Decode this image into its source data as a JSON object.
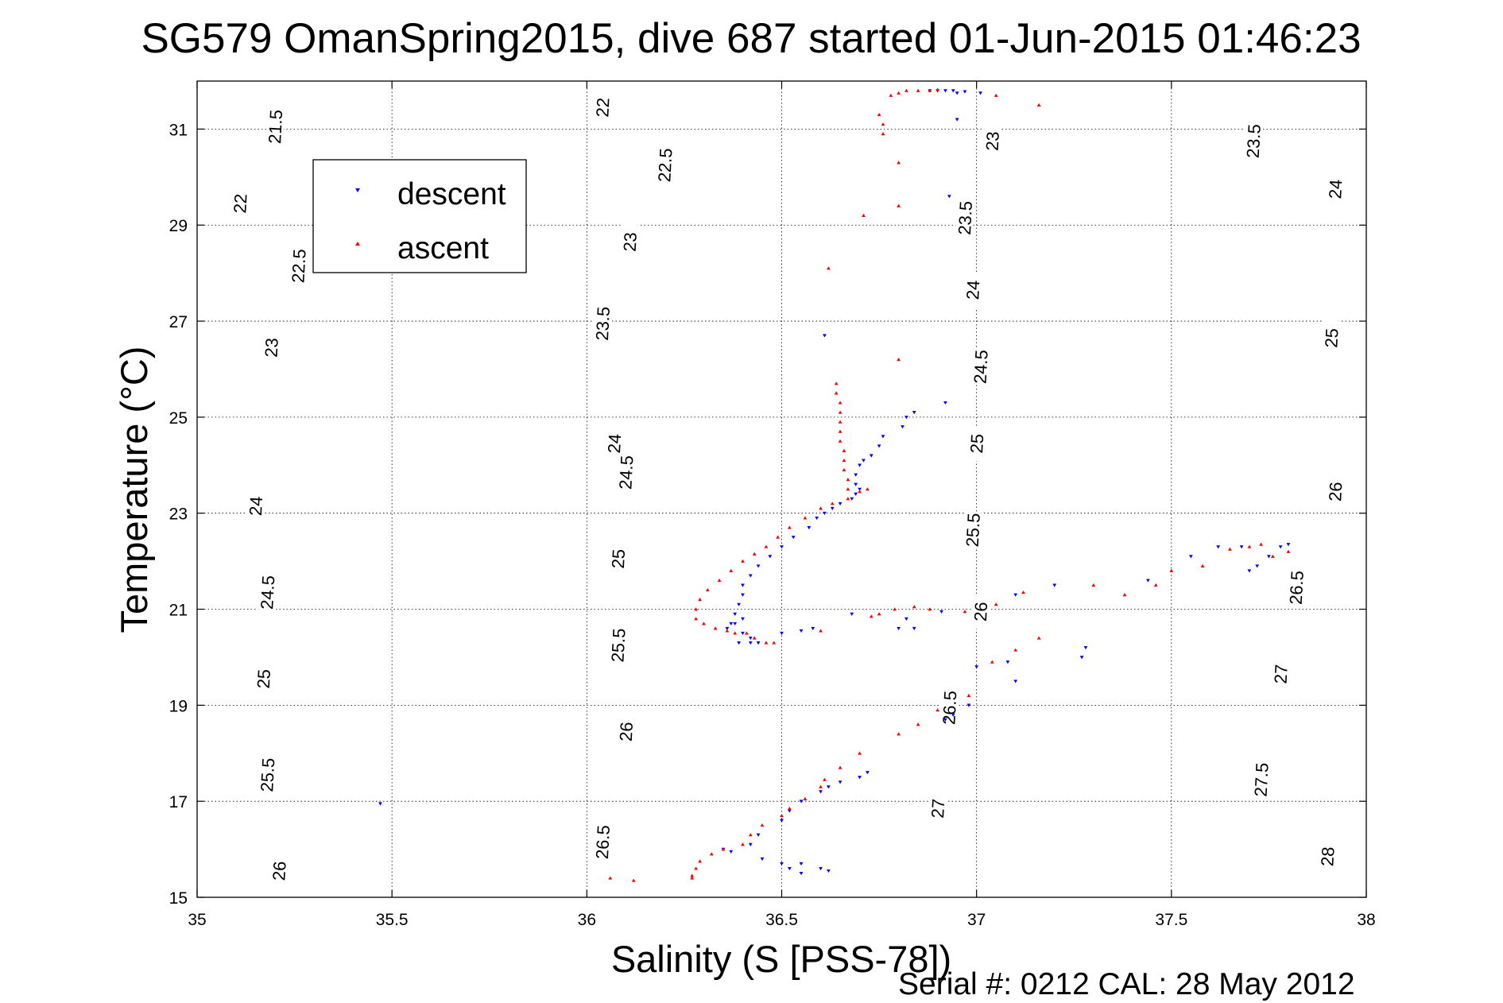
{
  "chart_data": {
    "type": "scatter",
    "title": "SG579 OmanSpring2015, dive 687 started 01-Jun-2015 01:46:23",
    "xlabel": "Salinity (S [PSS-78])",
    "ylabel": "Temperature (°C)",
    "xlim": [
      35,
      38
    ],
    "ylim": [
      15,
      32
    ],
    "x_ticks": [
      35,
      35.5,
      36,
      36.5,
      37,
      37.5,
      38
    ],
    "x_tick_labels": [
      "35",
      "35.5",
      "36",
      "36.5",
      "37",
      "37.5",
      "38"
    ],
    "y_ticks": [
      15,
      17,
      19,
      21,
      23,
      25,
      27,
      29,
      31
    ],
    "y_tick_labels": [
      "15",
      "17",
      "19",
      "21",
      "23",
      "25",
      "27",
      "29",
      "31"
    ],
    "grid": true,
    "legend_position": "top-left",
    "footer": "Serial #: 0212  CAL: 28 May 2012",
    "contours": {
      "levels": [
        21.5,
        22,
        22.5,
        23,
        23.5,
        24,
        24.5,
        25,
        25.5,
        26,
        26.5,
        27,
        27.5,
        28
      ],
      "labels": [
        {
          "text": "21.5",
          "s": 35.2,
          "t": 31.0
        },
        {
          "text": "22",
          "s": 36.04,
          "t": 31.4
        },
        {
          "text": "22",
          "s": 35.11,
          "t": 29.4
        },
        {
          "text": "22.5",
          "s": 36.2,
          "t": 30.2
        },
        {
          "text": "23",
          "s": 37.04,
          "t": 30.7
        },
        {
          "text": "22.5",
          "s": 35.26,
          "t": 28.1
        },
        {
          "text": "23",
          "s": 36.11,
          "t": 28.6
        },
        {
          "text": "23.5",
          "s": 36.97,
          "t": 29.1
        },
        {
          "text": "23.5",
          "s": 37.71,
          "t": 30.7
        },
        {
          "text": "24",
          "s": 37.92,
          "t": 29.7
        },
        {
          "text": "23",
          "s": 35.19,
          "t": 26.4
        },
        {
          "text": "23.5",
          "s": 36.04,
          "t": 26.9
        },
        {
          "text": "24",
          "s": 36.99,
          "t": 27.6
        },
        {
          "text": "24",
          "s": 36.07,
          "t": 24.4
        },
        {
          "text": "24.5",
          "s": 37.01,
          "t": 26.0
        },
        {
          "text": "25",
          "s": 37.91,
          "t": 26.6
        },
        {
          "text": "24",
          "s": 35.15,
          "t": 23.1
        },
        {
          "text": "24.5",
          "s": 36.1,
          "t": 23.8
        },
        {
          "text": "25",
          "s": 37.0,
          "t": 24.4
        },
        {
          "text": "24.5",
          "s": 35.18,
          "t": 21.3
        },
        {
          "text": "25",
          "s": 36.08,
          "t": 22.0
        },
        {
          "text": "25.5",
          "s": 36.99,
          "t": 22.6
        },
        {
          "text": "26",
          "s": 37.92,
          "t": 23.4
        },
        {
          "text": "25",
          "s": 35.17,
          "t": 19.5
        },
        {
          "text": "25.5",
          "s": 36.08,
          "t": 20.2
        },
        {
          "text": "26",
          "s": 37.01,
          "t": 20.9
        },
        {
          "text": "26.5",
          "s": 37.82,
          "t": 21.4
        },
        {
          "text": "26",
          "s": 36.1,
          "t": 18.4
        },
        {
          "text": "26.5",
          "s": 36.93,
          "t": 18.9
        },
        {
          "text": "27",
          "s": 37.78,
          "t": 19.6
        },
        {
          "text": "25.5",
          "s": 35.18,
          "t": 17.5
        },
        {
          "text": "26",
          "s": 35.21,
          "t": 15.5
        },
        {
          "text": "26.5",
          "s": 36.04,
          "t": 16.1
        },
        {
          "text": "27",
          "s": 36.9,
          "t": 16.8
        },
        {
          "text": "27.5",
          "s": 37.73,
          "t": 17.4
        },
        {
          "text": "28",
          "s": 37.9,
          "t": 15.8
        }
      ]
    },
    "series": [
      {
        "name": "descent",
        "marker": "triangle-down",
        "color": "#0000ff",
        "points": [
          [
            36.92,
            31.8
          ],
          [
            36.94,
            31.8
          ],
          [
            36.95,
            31.75
          ],
          [
            36.97,
            31.78
          ],
          [
            36.9,
            31.8
          ],
          [
            36.88,
            31.8
          ],
          [
            37.01,
            31.75
          ],
          [
            36.95,
            31.2
          ],
          [
            36.93,
            29.6
          ],
          [
            36.61,
            26.7
          ],
          [
            36.92,
            25.3
          ],
          [
            36.84,
            25.1
          ],
          [
            36.82,
            25.0
          ],
          [
            36.81,
            24.8
          ],
          [
            36.76,
            24.6
          ],
          [
            36.75,
            24.4
          ],
          [
            36.73,
            24.2
          ],
          [
            36.71,
            24.1
          ],
          [
            36.7,
            24.0
          ],
          [
            36.69,
            23.8
          ],
          [
            36.69,
            23.6
          ],
          [
            36.7,
            23.5
          ],
          [
            36.69,
            23.4
          ],
          [
            36.68,
            23.3
          ],
          [
            36.65,
            23.2
          ],
          [
            36.63,
            23.1
          ],
          [
            36.61,
            23.0
          ],
          [
            36.59,
            22.9
          ],
          [
            36.57,
            22.7
          ],
          [
            36.53,
            22.5
          ],
          [
            36.5,
            22.3
          ],
          [
            36.47,
            22.1
          ],
          [
            36.44,
            21.9
          ],
          [
            36.42,
            21.7
          ],
          [
            36.4,
            21.5
          ],
          [
            36.4,
            21.3
          ],
          [
            36.39,
            21.1
          ],
          [
            36.38,
            20.9
          ],
          [
            36.37,
            20.7
          ],
          [
            36.36,
            20.6
          ],
          [
            36.4,
            20.5
          ],
          [
            36.42,
            20.4
          ],
          [
            36.44,
            20.3
          ],
          [
            36.42,
            20.3
          ],
          [
            36.39,
            20.3
          ],
          [
            36.38,
            20.7
          ],
          [
            36.4,
            20.8
          ],
          [
            36.5,
            20.5
          ],
          [
            36.55,
            20.55
          ],
          [
            36.58,
            20.6
          ],
          [
            36.68,
            20.9
          ],
          [
            36.82,
            20.8
          ],
          [
            36.8,
            20.6
          ],
          [
            36.84,
            20.6
          ],
          [
            36.91,
            20.95
          ],
          [
            37.1,
            21.3
          ],
          [
            37.2,
            21.5
          ],
          [
            37.44,
            21.6
          ],
          [
            37.55,
            22.1
          ],
          [
            37.62,
            22.3
          ],
          [
            37.68,
            22.3
          ],
          [
            37.72,
            21.9
          ],
          [
            37.7,
            21.8
          ],
          [
            37.75,
            22.1
          ],
          [
            37.78,
            22.3
          ],
          [
            37.8,
            22.35
          ],
          [
            37.08,
            19.9
          ],
          [
            37.0,
            19.8
          ],
          [
            37.1,
            19.5
          ],
          [
            37.28,
            20.2
          ],
          [
            37.27,
            20.0
          ],
          [
            36.98,
            19.0
          ],
          [
            36.94,
            18.8
          ],
          [
            36.92,
            18.7
          ],
          [
            36.72,
            17.6
          ],
          [
            36.7,
            17.5
          ],
          [
            36.65,
            17.4
          ],
          [
            36.62,
            17.3
          ],
          [
            36.6,
            17.2
          ],
          [
            36.55,
            17.0
          ],
          [
            36.52,
            16.8
          ],
          [
            36.5,
            16.6
          ],
          [
            36.44,
            16.3
          ],
          [
            36.42,
            16.1
          ],
          [
            36.35,
            16.0
          ],
          [
            36.37,
            15.95
          ],
          [
            36.45,
            15.8
          ],
          [
            36.5,
            15.7
          ],
          [
            36.52,
            15.6
          ],
          [
            36.55,
            15.7
          ],
          [
            36.6,
            15.6
          ],
          [
            36.62,
            15.55
          ],
          [
            36.55,
            15.5
          ],
          [
            35.47,
            16.95
          ]
        ]
      },
      {
        "name": "ascent",
        "marker": "triangle-up",
        "color": "#ff0000",
        "points": [
          [
            36.8,
            31.75
          ],
          [
            36.82,
            31.8
          ],
          [
            36.85,
            31.8
          ],
          [
            36.88,
            31.8
          ],
          [
            36.9,
            31.82
          ],
          [
            36.78,
            31.7
          ],
          [
            37.05,
            31.7
          ],
          [
            37.16,
            31.5
          ],
          [
            36.75,
            31.3
          ],
          [
            36.76,
            31.1
          ],
          [
            36.76,
            30.9
          ],
          [
            36.8,
            30.3
          ],
          [
            36.8,
            29.4
          ],
          [
            36.71,
            29.2
          ],
          [
            36.62,
            28.1
          ],
          [
            36.8,
            26.2
          ],
          [
            36.64,
            25.7
          ],
          [
            36.64,
            25.5
          ],
          [
            36.65,
            25.3
          ],
          [
            36.65,
            25.1
          ],
          [
            36.65,
            24.9
          ],
          [
            36.65,
            24.7
          ],
          [
            36.65,
            24.5
          ],
          [
            36.66,
            24.3
          ],
          [
            36.66,
            24.1
          ],
          [
            36.66,
            23.9
          ],
          [
            36.67,
            23.7
          ],
          [
            36.67,
            23.5
          ],
          [
            36.7,
            23.45
          ],
          [
            36.72,
            23.5
          ],
          [
            36.67,
            23.3
          ],
          [
            36.63,
            23.2
          ],
          [
            36.6,
            23.1
          ],
          [
            36.56,
            22.9
          ],
          [
            36.52,
            22.7
          ],
          [
            36.49,
            22.5
          ],
          [
            36.46,
            22.3
          ],
          [
            36.43,
            22.15
          ],
          [
            36.4,
            22.0
          ],
          [
            36.37,
            21.8
          ],
          [
            36.34,
            21.6
          ],
          [
            36.31,
            21.4
          ],
          [
            36.29,
            21.2
          ],
          [
            36.28,
            21.0
          ],
          [
            36.28,
            20.8
          ],
          [
            36.3,
            20.7
          ],
          [
            36.33,
            20.6
          ],
          [
            36.36,
            20.55
          ],
          [
            36.38,
            20.5
          ],
          [
            36.41,
            20.5
          ],
          [
            36.43,
            20.4
          ],
          [
            36.46,
            20.3
          ],
          [
            36.48,
            20.3
          ],
          [
            36.6,
            20.55
          ],
          [
            36.73,
            20.85
          ],
          [
            36.75,
            20.9
          ],
          [
            36.79,
            21.0
          ],
          [
            36.84,
            21.05
          ],
          [
            36.88,
            21.0
          ],
          [
            36.97,
            20.95
          ],
          [
            37.05,
            21.1
          ],
          [
            37.12,
            21.35
          ],
          [
            37.3,
            21.5
          ],
          [
            37.38,
            21.3
          ],
          [
            37.46,
            21.5
          ],
          [
            37.5,
            21.8
          ],
          [
            37.58,
            21.9
          ],
          [
            37.65,
            22.25
          ],
          [
            37.7,
            22.3
          ],
          [
            37.73,
            22.35
          ],
          [
            37.76,
            22.1
          ],
          [
            37.8,
            22.2
          ],
          [
            37.16,
            20.4
          ],
          [
            37.1,
            20.15
          ],
          [
            37.04,
            19.9
          ],
          [
            36.98,
            19.2
          ],
          [
            36.9,
            18.9
          ],
          [
            36.85,
            18.6
          ],
          [
            36.8,
            18.4
          ],
          [
            36.7,
            18.0
          ],
          [
            36.65,
            17.7
          ],
          [
            36.61,
            17.45
          ],
          [
            36.6,
            17.3
          ],
          [
            36.56,
            17.05
          ],
          [
            36.52,
            16.85
          ],
          [
            36.5,
            16.7
          ],
          [
            36.45,
            16.5
          ],
          [
            36.42,
            16.3
          ],
          [
            36.4,
            16.1
          ],
          [
            36.35,
            16.0
          ],
          [
            36.32,
            15.9
          ],
          [
            36.29,
            15.75
          ],
          [
            36.28,
            15.6
          ],
          [
            36.27,
            15.45
          ],
          [
            36.27,
            15.4
          ],
          [
            36.06,
            15.4
          ],
          [
            36.12,
            15.35
          ]
        ]
      }
    ]
  }
}
